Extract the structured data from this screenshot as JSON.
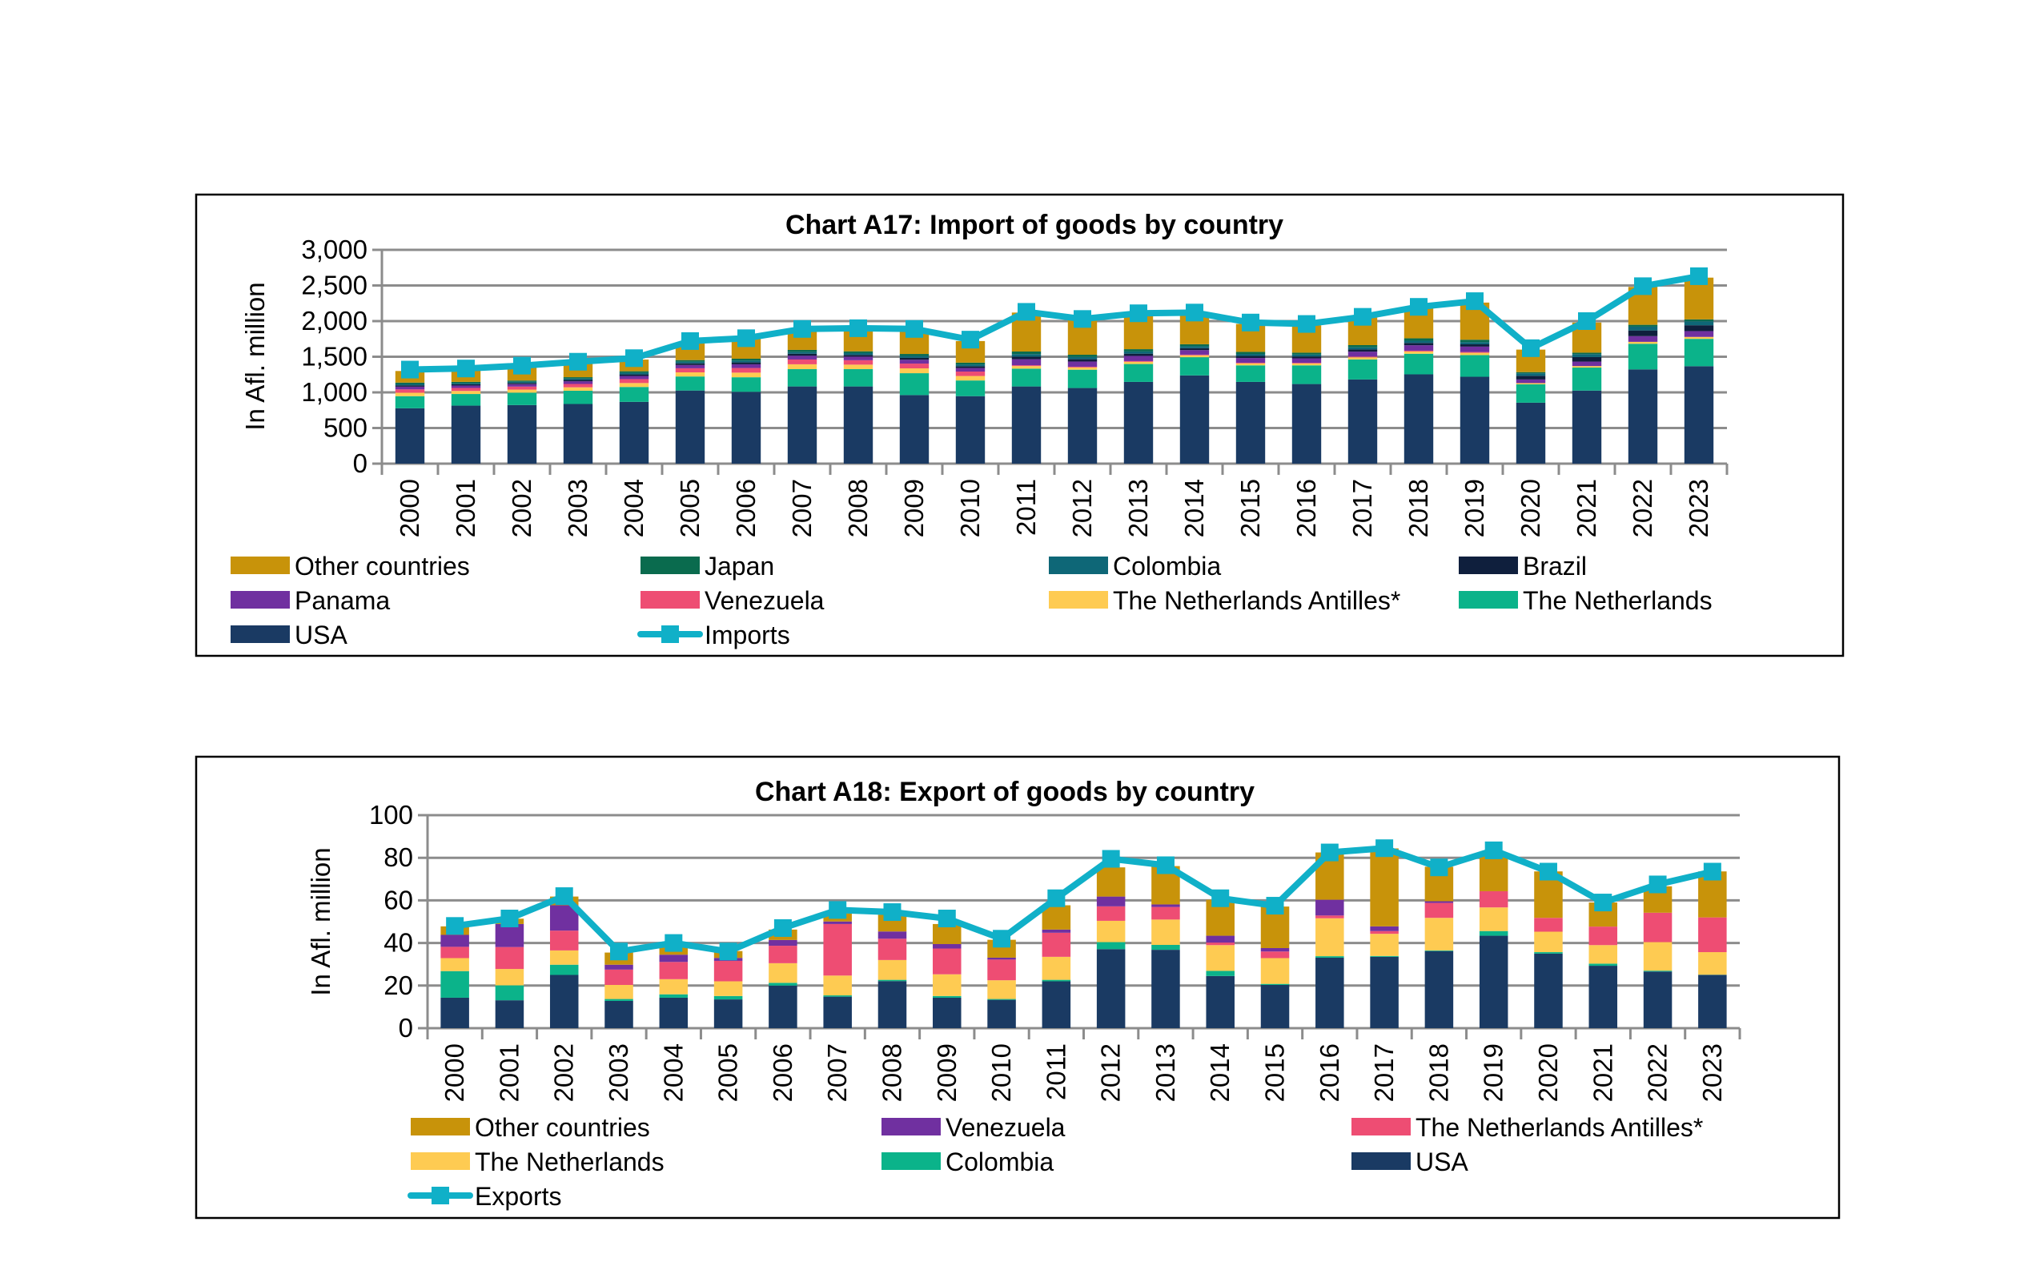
{
  "chart_data": [
    {
      "type": "bar",
      "stacked": true,
      "title": "Chart A17: Import of goods by country",
      "ylabel": "In Afl. million",
      "xlabel": "",
      "ylim": [
        0,
        3000
      ],
      "yticks": [
        "0",
        "500",
        "1,000",
        "1,500",
        "2,000",
        "2,500",
        "3,000"
      ],
      "ytick_values": [
        0,
        500,
        1000,
        1500,
        2000,
        2500,
        3000
      ],
      "grid": true,
      "legend_position": "bottom",
      "categories": [
        "2000",
        "2001",
        "2002",
        "2003",
        "2004",
        "2005",
        "2006",
        "2007",
        "2008",
        "2009",
        "2010",
        "2011",
        "2012",
        "2013",
        "2014",
        "2015",
        "2016",
        "2017",
        "2018",
        "2019",
        "2020",
        "2021",
        "2022",
        "2023"
      ],
      "series": [
        {
          "name": "USA",
          "color": "#1A3A63",
          "values": [
            777,
            814,
            822,
            837,
            867,
            1026,
            1008,
            1083,
            1083,
            962,
            947,
            1083,
            1061,
            1147,
            1238,
            1147,
            1117,
            1181,
            1253,
            1219,
            855,
            1025,
            1322,
            1367
          ]
        },
        {
          "name": "The Netherlands",
          "color": "#0BB38A",
          "values": [
            170,
            163,
            174,
            186,
            209,
            197,
            204,
            243,
            243,
            307,
            220,
            250,
            257,
            251,
            255,
            232,
            262,
            281,
            289,
            304,
            258,
            323,
            360,
            384
          ]
        },
        {
          "name": "The Netherlands Antilles*",
          "color": "#FECB52",
          "values": [
            48,
            43,
            43,
            48,
            55,
            58,
            65,
            68,
            63,
            68,
            63,
            36,
            32,
            31,
            27,
            28,
            27,
            30,
            32,
            32,
            17,
            21,
            27,
            27
          ]
        },
        {
          "name": "Venezuela",
          "color": "#EE4D73",
          "values": [
            47,
            42,
            42,
            47,
            55,
            57,
            65,
            67,
            62,
            67,
            62,
            12,
            10,
            10,
            9,
            9,
            9,
            10,
            11,
            11,
            0,
            0,
            0,
            0
          ]
        },
        {
          "name": "Panama",
          "color": "#7030A0",
          "values": [
            38,
            34,
            34,
            38,
            44,
            46,
            52,
            54,
            50,
            54,
            50,
            84,
            73,
            73,
            64,
            66,
            62,
            70,
            76,
            76,
            51,
            63,
            80,
            82
          ]
        },
        {
          "name": "Brazil",
          "color": "#0F1F3D",
          "values": [
            19,
            17,
            17,
            19,
            22,
            23,
            26,
            27,
            25,
            27,
            25,
            36,
            32,
            31,
            27,
            29,
            27,
            30,
            32,
            32,
            51,
            63,
            80,
            82
          ]
        },
        {
          "name": "Colombia",
          "color": "#0E6777",
          "values": [
            19,
            17,
            17,
            19,
            22,
            23,
            26,
            27,
            25,
            27,
            25,
            36,
            32,
            31,
            27,
            28,
            27,
            30,
            32,
            32,
            35,
            41,
            53,
            55
          ]
        },
        {
          "name": "Japan",
          "color": "#0A6B4E",
          "values": [
            19,
            17,
            17,
            19,
            22,
            23,
            26,
            27,
            25,
            27,
            25,
            36,
            31,
            32,
            28,
            29,
            26,
            31,
            33,
            33,
            17,
            21,
            26,
            27
          ]
        },
        {
          "name": "Other countries",
          "color": "#C8930A",
          "values": [
            163,
            168,
            184,
            197,
            164,
            247,
            278,
            284,
            304,
            331,
            303,
            547,
            492,
            484,
            425,
            392,
            383,
            387,
            432,
            521,
            316,
            423,
            532,
            586
          ]
        }
      ],
      "line": {
        "name": "Imports",
        "color": "#10B0C8",
        "values": [
          1320,
          1335,
          1375,
          1430,
          1480,
          1720,
          1760,
          1890,
          1900,
          1890,
          1740,
          2130,
          2030,
          2110,
          2120,
          1980,
          1960,
          2060,
          2200,
          2280,
          1620,
          2000,
          2490,
          2630
        ]
      },
      "legend": [
        "Other countries",
        "Japan",
        "Colombia",
        "Brazil",
        "Panama",
        "Venezuela",
        "The Netherlands Antilles*",
        "The Netherlands",
        "USA",
        "Imports"
      ]
    },
    {
      "type": "bar",
      "stacked": true,
      "title": "Chart A18: Export of goods by country",
      "ylabel": "In Afl. million",
      "xlabel": "",
      "ylim": [
        0,
        100
      ],
      "yticks": [
        "0",
        "20",
        "40",
        "60",
        "80",
        "100"
      ],
      "ytick_values": [
        0,
        20,
        40,
        60,
        80,
        100
      ],
      "grid": true,
      "legend_position": "bottom",
      "categories": [
        "2000",
        "2001",
        "2002",
        "2003",
        "2004",
        "2005",
        "2006",
        "2007",
        "2008",
        "2009",
        "2010",
        "2011",
        "2012",
        "2013",
        "2014",
        "2015",
        "2016",
        "2017",
        "2018",
        "2019",
        "2020",
        "2021",
        "2022",
        "2023"
      ],
      "series": [
        {
          "name": "USA",
          "color": "#1A3A63",
          "values": [
            14.3,
            13.1,
            25.0,
            12.8,
            14.3,
            13.5,
            20.0,
            14.8,
            22.1,
            14.3,
            13.3,
            22.0,
            37.1,
            36.8,
            24.5,
            20.3,
            33.1,
            33.5,
            36.2,
            43.4,
            35.0,
            29.3,
            26.6,
            25.0
          ]
        },
        {
          "name": "Colombia",
          "color": "#0BB38A",
          "values": [
            12.5,
            7.0,
            4.8,
            0.9,
            1.6,
            1.6,
            1.3,
            0.6,
            0.6,
            0.8,
            0.4,
            0.7,
            3.3,
            2.3,
            2.4,
            0.5,
            0.7,
            0.4,
            0.3,
            2.2,
            0.7,
            1.0,
            0.4,
            0.1
          ]
        },
        {
          "name": "The Netherlands",
          "color": "#FECB52",
          "values": [
            6.1,
            7.7,
            6.7,
            6.6,
            7.1,
            6.9,
            9.2,
            9.3,
            9.3,
            10.2,
            8.8,
            10.8,
            10.0,
            11.9,
            12.1,
            12.1,
            17.8,
            10.4,
            15.3,
            11.1,
            9.6,
            8.7,
            13.4,
            10.6
          ]
        },
        {
          "name": "The Netherlands Antilles*",
          "color": "#EE4D73",
          "values": [
            5.3,
            10.3,
            9.3,
            7.2,
            8.1,
            9.6,
            8.2,
            24.2,
            10.0,
            12.1,
            9.7,
            11.3,
            6.8,
            5.9,
            1.2,
            3.1,
            1.3,
            1.3,
            7.0,
            7.6,
            6.5,
            8.7,
            13.8,
            16.3
          ]
        },
        {
          "name": "Venezuela",
          "color": "#7030A0",
          "values": [
            5.6,
            10.8,
            11.9,
            2.3,
            3.4,
            1.4,
            2.7,
            1.2,
            3.4,
            2.1,
            0.9,
            1.5,
            4.6,
            1.2,
            3.2,
            1.6,
            7.4,
            2.2,
            0.8,
            0,
            0,
            0,
            0,
            0
          ]
        },
        {
          "name": "Other countries",
          "color": "#C8930A",
          "values": [
            4.0,
            2.5,
            4.1,
            5.7,
            4.2,
            3.2,
            4.9,
            3.8,
            7.9,
            9.4,
            8.4,
            11.4,
            13.7,
            18.0,
            16.9,
            19.5,
            22.2,
            36.6,
            16.2,
            16.9,
            21.8,
            11.3,
            12.4,
            21.6
          ]
        }
      ],
      "line": {
        "name": "Exports",
        "color": "#10B0C8",
        "values": [
          48,
          51.5,
          62,
          36,
          40,
          36,
          47,
          55.5,
          54.5,
          51.5,
          42,
          61,
          79.5,
          76.5,
          61,
          57.5,
          82.5,
          84.5,
          75.5,
          83.5,
          73.5,
          59,
          67.5,
          73.5
        ]
      },
      "legend": [
        "Other countries",
        "Venezuela",
        "The Netherlands Antilles*",
        "The Netherlands",
        "Colombia",
        "USA",
        "Exports"
      ]
    }
  ]
}
